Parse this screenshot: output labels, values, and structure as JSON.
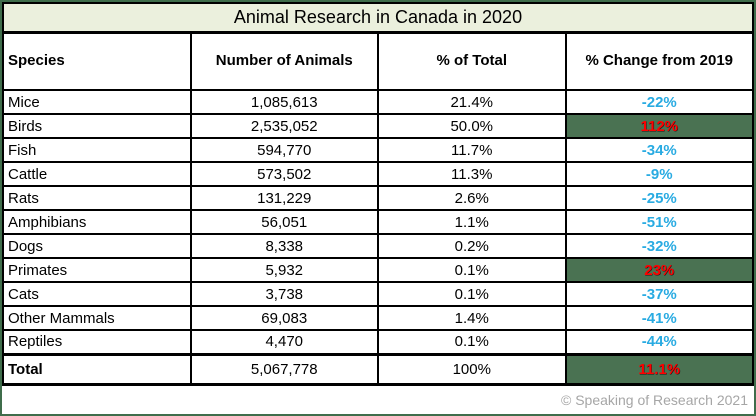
{
  "title": "Animal Research in Canada in 2020",
  "columns": {
    "species": "Species",
    "count": "Number of Animals",
    "pct": "% of Total",
    "change": "% Change from 2019"
  },
  "rows": [
    {
      "species": "Mice",
      "count": "1,085,613",
      "pct": "21.4%",
      "change": "-22%",
      "direction": "negative"
    },
    {
      "species": "Birds",
      "count": "2,535,052",
      "pct": "50.0%",
      "change": "112%",
      "direction": "positive"
    },
    {
      "species": "Fish",
      "count": "594,770",
      "pct": "11.7%",
      "change": "-34%",
      "direction": "negative"
    },
    {
      "species": "Cattle",
      "count": "573,502",
      "pct": "11.3%",
      "change": "-9%",
      "direction": "negative"
    },
    {
      "species": "Rats",
      "count": "131,229",
      "pct": "2.6%",
      "change": "-25%",
      "direction": "negative"
    },
    {
      "species": "Amphibians",
      "count": "56,051",
      "pct": "1.1%",
      "change": "-51%",
      "direction": "negative"
    },
    {
      "species": "Dogs",
      "count": "8,338",
      "pct": "0.2%",
      "change": "-32%",
      "direction": "negative"
    },
    {
      "species": "Primates",
      "count": "5,932",
      "pct": "0.1%",
      "change": "23%",
      "direction": "positive"
    },
    {
      "species": "Cats",
      "count": "3,738",
      "pct": "0.1%",
      "change": "-37%",
      "direction": "negative"
    },
    {
      "species": "Other Mammals",
      "count": "69,083",
      "pct": "1.4%",
      "change": "-41%",
      "direction": "negative"
    },
    {
      "species": "Reptiles",
      "count": "4,470",
      "pct": "0.1%",
      "change": "-44%",
      "direction": "negative"
    }
  ],
  "total": {
    "species": "Total",
    "count": "5,067,778",
    "pct": "100%",
    "change": "11.1%",
    "direction": "positive"
  },
  "footer": "© Speaking of Research 2021",
  "colors": {
    "title_background": "#ebf0dd",
    "positive_cell_background": "#4a7252",
    "positive_text": "#ff0000",
    "negative_text": "#29abe2",
    "frame_border": "#3f6d4b",
    "footer_text": "#a6a6a6",
    "grid_border": "#000000"
  },
  "chart_data": {
    "type": "table",
    "title": "Animal Research in Canada in 2020",
    "columns": [
      "Species",
      "Number of Animals",
      "% of Total",
      "% Change from 2019"
    ],
    "categories": [
      "Mice",
      "Birds",
      "Fish",
      "Cattle",
      "Rats",
      "Amphibians",
      "Dogs",
      "Primates",
      "Cats",
      "Other Mammals",
      "Reptiles",
      "Total"
    ],
    "series": [
      {
        "name": "Number of Animals",
        "values": [
          1085613,
          2535052,
          594770,
          573502,
          131229,
          56051,
          8338,
          5932,
          3738,
          69083,
          4470,
          5067778
        ]
      },
      {
        "name": "% of Total",
        "values": [
          21.4,
          50.0,
          11.7,
          11.3,
          2.6,
          1.1,
          0.2,
          0.1,
          0.1,
          1.4,
          0.1,
          100
        ]
      },
      {
        "name": "% Change from 2019",
        "values": [
          -22,
          112,
          -34,
          -9,
          -25,
          -51,
          -32,
          23,
          -37,
          -41,
          -44,
          11.1
        ]
      }
    ],
    "annotations": [
      "Negative % change shown in blue text",
      "Positive % change shown as red text on green highlight"
    ]
  }
}
